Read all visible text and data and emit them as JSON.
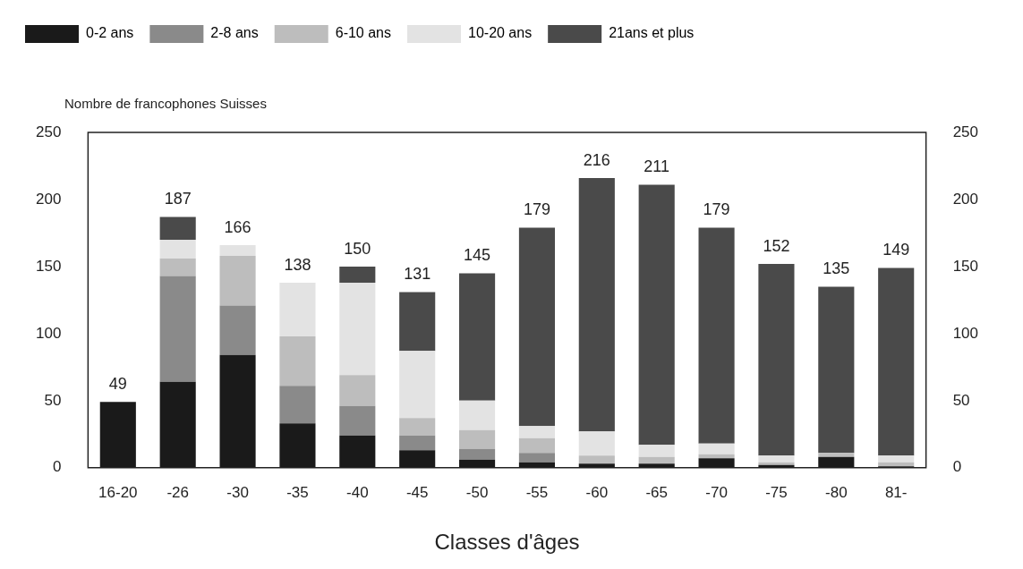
{
  "chart_data": {
    "type": "bar",
    "stacked": true,
    "xlabel": "Classes d'âges",
    "ylabel": "Nombre de francophones Suisses",
    "categories": [
      "16-20",
      "-26",
      "-30",
      "-35",
      "-40",
      "-45",
      "-50",
      "-55",
      "-60",
      "-65",
      "-70",
      "-75",
      "-80",
      "81-"
    ],
    "series": [
      {
        "name": "0-2 ans",
        "color": "#1a1a1a",
        "values": [
          49,
          64,
          84,
          33,
          24,
          13,
          6,
          4,
          3,
          3,
          7,
          2,
          8,
          1
        ]
      },
      {
        "name": "2-8 ans",
        "color": "#8a8a8a",
        "values": [
          0,
          79,
          37,
          28,
          22,
          11,
          8,
          7,
          0,
          0,
          0,
          0,
          0,
          0
        ]
      },
      {
        "name": "6-10 ans",
        "color": "#bdbdbd",
        "values": [
          0,
          13,
          37,
          37,
          23,
          13,
          14,
          11,
          6,
          5,
          3,
          2,
          3,
          3
        ]
      },
      {
        "name": "10-20 ans",
        "color": "#e3e3e3",
        "values": [
          0,
          14,
          8,
          40,
          69,
          50,
          22,
          9,
          18,
          9,
          8,
          5,
          0,
          5
        ]
      },
      {
        "name": "21ans et plus",
        "color": "#4a4a4a",
        "values": [
          0,
          17,
          0,
          0,
          12,
          44,
          95,
          148,
          189,
          194,
          161,
          143,
          124,
          140
        ]
      }
    ],
    "totals": [
      "49",
      "187",
      "166",
      "138",
      "150",
      "131",
      "145",
      "179",
      "216",
      "211",
      "179",
      "152",
      "135",
      "149"
    ],
    "ylim": [
      0,
      250
    ],
    "yticks": [
      0,
      50,
      100,
      150,
      200,
      250
    ],
    "y2lim": [
      0,
      250
    ],
    "y2ticks": [
      0,
      50,
      100,
      150,
      200,
      250
    ],
    "grid": false,
    "legend": "top left"
  }
}
